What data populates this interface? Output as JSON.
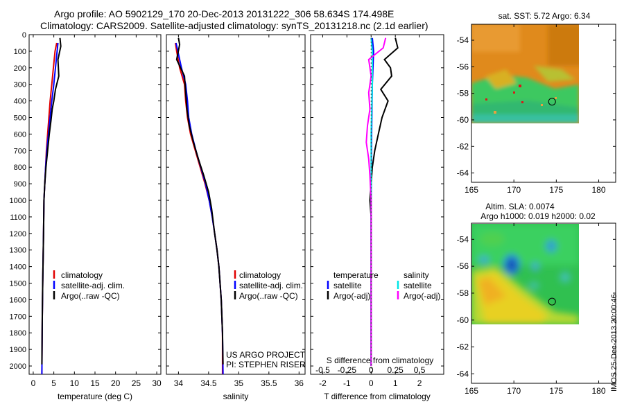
{
  "header": {
    "title_line1": "Argo profile: AO 5902129_170 20-Dec-2013 20131222_306 58.634S 174.498E",
    "title_line2": "Climatology: CARS2009. Satellite-adjusted climatology: synTS_20131218.nc (2.1d earlier)"
  },
  "side_label": "IMOS 25-Dec-2013 20:00:46",
  "colors": {
    "climatology": "#e00000",
    "satellite": "#0000ff",
    "argo": "#000000",
    "sal_satellite": "#00e6e6",
    "sal_argo": "#ff00ff"
  },
  "chart_data": [
    {
      "type": "line",
      "name": "temperature-profile",
      "xlabel": "temperature (deg C)",
      "xlim": [
        -1,
        31
      ],
      "xticks": [
        "0",
        "5",
        "10",
        "15",
        "20",
        "25",
        "30"
      ],
      "ylim": [
        2050,
        0
      ],
      "yticks": [
        "0",
        "100",
        "200",
        "300",
        "400",
        "500",
        "600",
        "700",
        "800",
        "900",
        "1000",
        "1100",
        "1200",
        "1300",
        "1400",
        "1500",
        "1600",
        "1700",
        "1800",
        "1900",
        "2000"
      ],
      "legend": [
        "climatology",
        "satellite-adj. clim.",
        "Argo(..raw -QC)"
      ],
      "series": [
        {
          "name": "climatology",
          "color": "#e00000",
          "points": [
            [
              5.7,
              50
            ],
            [
              5.3,
              100
            ],
            [
              4.9,
              200
            ],
            [
              4.5,
              300
            ],
            [
              4.1,
              400
            ],
            [
              3.8,
              500
            ],
            [
              3.5,
              600
            ],
            [
              3.2,
              700
            ],
            [
              3.0,
              800
            ],
            [
              2.8,
              900
            ],
            [
              2.6,
              1000
            ],
            [
              2.5,
              1200
            ],
            [
              2.3,
              1500
            ],
            [
              2.2,
              1700
            ],
            [
              2.1,
              2050
            ]
          ]
        },
        {
          "name": "satellite-adj. clim.",
          "color": "#0000ff",
          "points": [
            [
              6.0,
              50
            ],
            [
              5.8,
              100
            ],
            [
              5.4,
              200
            ],
            [
              5.0,
              300
            ],
            [
              4.5,
              400
            ],
            [
              4.1,
              500
            ],
            [
              3.7,
              600
            ],
            [
              3.3,
              700
            ],
            [
              3.0,
              800
            ],
            [
              2.8,
              900
            ],
            [
              2.6,
              1000
            ],
            [
              2.5,
              1200
            ],
            [
              2.3,
              1500
            ],
            [
              2.2,
              1700
            ],
            [
              2.1,
              2050
            ]
          ]
        },
        {
          "name": "Argo(..raw -QC)",
          "color": "#000000",
          "points": [
            [
              6.5,
              20
            ],
            [
              6.7,
              70
            ],
            [
              6.0,
              150
            ],
            [
              6.2,
              250
            ],
            [
              5.4,
              330
            ],
            [
              5.0,
              400
            ],
            [
              4.6,
              450
            ],
            [
              4.3,
              520
            ],
            [
              3.9,
              600
            ],
            [
              3.5,
              700
            ],
            [
              3.1,
              800
            ],
            [
              2.8,
              900
            ],
            [
              2.6,
              1000
            ],
            [
              2.5,
              1200
            ],
            [
              2.3,
              1500
            ],
            [
              2.2,
              1700
            ],
            [
              2.1,
              1990
            ]
          ]
        }
      ]
    },
    {
      "type": "line",
      "name": "salinity-profile",
      "xlabel": "salinity",
      "xlim": [
        33.8,
        36.1
      ],
      "xticks": [
        "34",
        "34.5",
        "35",
        "35.5",
        "36"
      ],
      "ylim": [
        2050,
        0
      ],
      "legend": [
        "climatology",
        "satellite-adj. clim.",
        "Argo(..raw -QC)"
      ],
      "annotation": [
        "US ARGO PROJECT",
        "PI: STEPHEN RISER"
      ],
      "series": [
        {
          "name": "climatology",
          "color": "#e00000",
          "points": [
            [
              33.95,
              50
            ],
            [
              33.97,
              100
            ],
            [
              34.02,
              200
            ],
            [
              34.1,
              300
            ],
            [
              34.12,
              400
            ],
            [
              34.15,
              500
            ],
            [
              34.2,
              600
            ],
            [
              34.28,
              700
            ],
            [
              34.36,
              800
            ],
            [
              34.44,
              900
            ],
            [
              34.51,
              1000
            ],
            [
              34.56,
              1100
            ],
            [
              34.6,
              1200
            ],
            [
              34.64,
              1300
            ],
            [
              34.67,
              1400
            ],
            [
              34.69,
              1500
            ],
            [
              34.71,
              1600
            ],
            [
              34.72,
              1700
            ],
            [
              34.73,
              1800
            ],
            [
              34.73,
              2050
            ]
          ]
        },
        {
          "name": "satellite-adj. clim.",
          "color": "#0000ff",
          "points": [
            [
              33.96,
              50
            ],
            [
              33.99,
              100
            ],
            [
              34.05,
              200
            ],
            [
              34.12,
              300
            ],
            [
              34.15,
              400
            ],
            [
              34.17,
              500
            ],
            [
              34.22,
              600
            ],
            [
              34.29,
              700
            ],
            [
              34.37,
              800
            ],
            [
              34.45,
              900
            ],
            [
              34.51,
              1000
            ],
            [
              34.56,
              1100
            ],
            [
              34.6,
              1200
            ],
            [
              34.64,
              1300
            ],
            [
              34.67,
              1400
            ],
            [
              34.69,
              1500
            ],
            [
              34.71,
              1600
            ],
            [
              34.72,
              1700
            ],
            [
              34.73,
              1800
            ],
            [
              34.74,
              2050
            ]
          ]
        },
        {
          "name": "Argo(..raw -QC)",
          "color": "#000000",
          "points": [
            [
              34.0,
              20
            ],
            [
              34.02,
              60
            ],
            [
              33.97,
              150
            ],
            [
              34.1,
              250
            ],
            [
              34.12,
              350
            ],
            [
              34.14,
              450
            ],
            [
              34.18,
              550
            ],
            [
              34.25,
              650
            ],
            [
              34.33,
              750
            ],
            [
              34.42,
              850
            ],
            [
              34.5,
              950
            ],
            [
              34.55,
              1050
            ],
            [
              34.6,
              1200
            ],
            [
              34.64,
              1300
            ],
            [
              34.67,
              1400
            ],
            [
              34.69,
              1500
            ],
            [
              34.71,
              1600
            ],
            [
              34.72,
              1700
            ],
            [
              34.73,
              1800
            ],
            [
              34.74,
              1990
            ]
          ]
        }
      ]
    },
    {
      "type": "line",
      "name": "difference-profile",
      "xlabel": "T difference from climatology",
      "xlabel_top": "S difference from climatology",
      "xlim": [
        -2.5,
        3.0
      ],
      "xticks": [
        "-2",
        "-1",
        "0",
        "1",
        "2"
      ],
      "xticks_s": [
        "-0.5",
        "-0.25",
        "0",
        "0.25",
        "0.5"
      ],
      "ylim": [
        2050,
        0
      ],
      "legend_t_title": "temperature",
      "legend_s_title": "salinity",
      "legend": [
        "satellite",
        "Argo(-adj)"
      ],
      "series": [
        {
          "name": "temperature satellite",
          "color": "#0000ff",
          "points": [
            [
              0.05,
              20
            ],
            [
              0.1,
              100
            ],
            [
              0.05,
              300
            ],
            [
              0.02,
              600
            ],
            [
              0,
              1000
            ],
            [
              0,
              2000
            ]
          ]
        },
        {
          "name": "temperature Argo(-adj)",
          "color": "#000000",
          "points": [
            [
              1.0,
              20
            ],
            [
              1.1,
              80
            ],
            [
              0.55,
              150
            ],
            [
              0.8,
              200
            ],
            [
              0.85,
              250
            ],
            [
              0.4,
              330
            ],
            [
              0.7,
              400
            ],
            [
              0.45,
              500
            ],
            [
              0.3,
              600
            ],
            [
              0.15,
              700
            ],
            [
              0.05,
              800
            ],
            [
              0,
              900
            ],
            [
              -0.05,
              1000
            ],
            [
              0,
              1100
            ],
            [
              0,
              2000
            ]
          ]
        },
        {
          "name": "salinity satellite",
          "color": "#00e6e6",
          "points": [
            [
              0,
              20
            ],
            [
              0.05,
              100
            ],
            [
              0.05,
              300
            ],
            [
              0,
              600
            ],
            [
              0,
              2000
            ]
          ]
        },
        {
          "name": "salinity Argo(-adj)",
          "color": "#ff00ff",
          "points": [
            [
              0.6,
              20
            ],
            [
              0.5,
              80
            ],
            [
              -0.1,
              150
            ],
            [
              0.0,
              250
            ],
            [
              -0.1,
              350
            ],
            [
              -0.05,
              450
            ],
            [
              -0.15,
              550
            ],
            [
              -0.2,
              650
            ],
            [
              -0.1,
              750
            ],
            [
              -0.05,
              850
            ],
            [
              0,
              1000
            ],
            [
              0,
              1100
            ],
            [
              0,
              2000
            ]
          ]
        }
      ]
    },
    {
      "type": "heatmap",
      "name": "sst-map",
      "title": "sat. SST: 5.72 Argo: 6.34",
      "xlim": [
        165,
        182
      ],
      "ylim": [
        -64.7,
        -52.8
      ],
      "xticks": [
        "165",
        "170",
        "175",
        "180"
      ],
      "yticks": [
        "-54",
        "-56",
        "-58",
        "-60",
        "-62",
        "-64"
      ],
      "argo_position": [
        174.5,
        -58.63
      ]
    },
    {
      "type": "heatmap",
      "name": "sla-map",
      "title_line1": "Altim. SLA: 0.0074",
      "title_line2": "Argo h1000: 0.019 h2000: 0.02",
      "xlim": [
        165,
        182
      ],
      "ylim": [
        -64.7,
        -52.8
      ],
      "xticks": [
        "165",
        "170",
        "175",
        "180"
      ],
      "yticks": [
        "-54",
        "-56",
        "-58",
        "-60",
        "-62",
        "-64"
      ],
      "argo_position": [
        174.5,
        -58.63
      ]
    }
  ]
}
